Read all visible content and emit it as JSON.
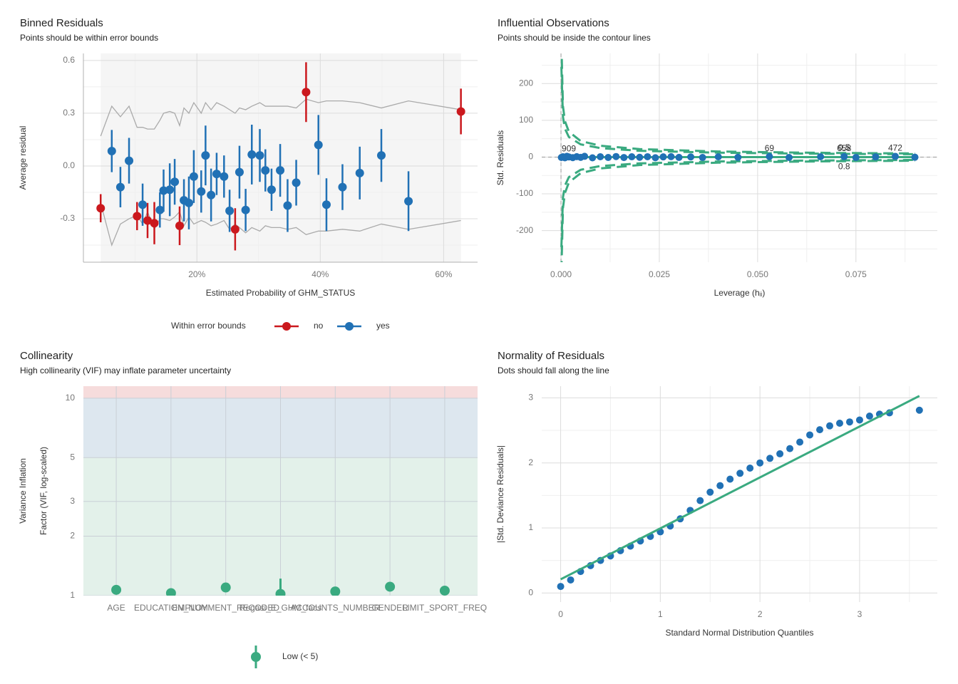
{
  "chart_data": [
    {
      "type": "errorbar",
      "title": "Binned Residuals",
      "subtitle": "Points should be within error bounds",
      "xlabel": "Estimated Probability of GHM_STATUS",
      "ylabel": "Average residual",
      "xlim": [
        0.016,
        0.655
      ],
      "ylim": [
        -0.547,
        0.64
      ],
      "xticks": [
        {
          "value": 0.2,
          "label": "20%"
        },
        {
          "value": 0.4,
          "label": "40%"
        },
        {
          "value": 0.6,
          "label": "60%"
        }
      ],
      "yticks": [
        0.6,
        0.3,
        {
          "value": 0,
          "label": "0.0"
        },
        -0.3
      ],
      "grid": true,
      "axis_lines": true,
      "band_color": "#f5f5f5",
      "legend_title": "Within error bounds",
      "legend": "bottom",
      "series": [
        {
          "name": "no",
          "color": "#cb181d",
          "x": [
            0.044,
            0.103,
            0.12,
            0.131,
            0.172,
            0.262,
            0.377,
            0.628
          ],
          "values": [
            -0.24,
            -0.285,
            -0.31,
            -0.325,
            -0.34,
            -0.36,
            0.42,
            0.31
          ],
          "errors": [
            0.08,
            0.08,
            0.1,
            0.12,
            0.11,
            0.12,
            0.17,
            0.13
          ]
        },
        {
          "name": "yes",
          "color": "#2171b5",
          "x": [
            0.062,
            0.076,
            0.09,
            0.112,
            0.14,
            0.146,
            0.156,
            0.164,
            0.179,
            0.187,
            0.195,
            0.207,
            0.214,
            0.223,
            0.232,
            0.244,
            0.253,
            0.269,
            0.279,
            0.289,
            0.302,
            0.311,
            0.321,
            0.335,
            0.347,
            0.361,
            0.397,
            0.41,
            0.436,
            0.464,
            0.499,
            0.543
          ],
          "values": [
            0.085,
            -0.12,
            0.03,
            -0.22,
            -0.25,
            -0.14,
            -0.135,
            -0.09,
            -0.195,
            -0.21,
            -0.06,
            -0.145,
            0.06,
            -0.165,
            -0.045,
            -0.06,
            -0.255,
            -0.035,
            -0.25,
            0.065,
            0.06,
            -0.025,
            -0.135,
            -0.025,
            -0.225,
            -0.095,
            0.12,
            -0.22,
            -0.12,
            -0.04,
            0.06,
            -0.2
          ],
          "errors": [
            0.12,
            0.115,
            0.13,
            0.12,
            0.1,
            0.12,
            0.15,
            0.13,
            0.12,
            0.15,
            0.15,
            0.12,
            0.17,
            0.15,
            0.12,
            0.12,
            0.12,
            0.15,
            0.12,
            0.17,
            0.15,
            0.12,
            0.12,
            0.15,
            0.15,
            0.13,
            0.17,
            0.15,
            0.13,
            0.15,
            0.15,
            0.17
          ]
        }
      ],
      "bounds": {
        "color": "#aaaaaa",
        "x": [
          0.044,
          0.062,
          0.076,
          0.09,
          0.103,
          0.112,
          0.12,
          0.131,
          0.14,
          0.146,
          0.156,
          0.164,
          0.172,
          0.179,
          0.187,
          0.195,
          0.207,
          0.214,
          0.223,
          0.232,
          0.244,
          0.253,
          0.262,
          0.269,
          0.279,
          0.289,
          0.302,
          0.311,
          0.321,
          0.335,
          0.347,
          0.361,
          0.377,
          0.397,
          0.41,
          0.436,
          0.464,
          0.499,
          0.543,
          0.628
        ],
        "upper": [
          0.17,
          0.34,
          0.28,
          0.34,
          0.22,
          0.22,
          0.21,
          0.21,
          0.26,
          0.3,
          0.31,
          0.3,
          0.23,
          0.33,
          0.3,
          0.36,
          0.3,
          0.36,
          0.32,
          0.36,
          0.34,
          0.32,
          0.3,
          0.33,
          0.32,
          0.34,
          0.36,
          0.34,
          0.34,
          0.34,
          0.34,
          0.33,
          0.38,
          0.36,
          0.37,
          0.37,
          0.36,
          0.33,
          0.37,
          0.32
        ],
        "lower": [
          -0.21,
          -0.45,
          -0.33,
          -0.3,
          -0.28,
          -0.33,
          -0.26,
          -0.36,
          -0.3,
          -0.3,
          -0.31,
          -0.29,
          -0.26,
          -0.34,
          -0.29,
          -0.33,
          -0.31,
          -0.32,
          -0.34,
          -0.33,
          -0.31,
          -0.36,
          -0.33,
          -0.35,
          -0.38,
          -0.35,
          -0.37,
          -0.34,
          -0.35,
          -0.35,
          -0.36,
          -0.35,
          -0.39,
          -0.37,
          -0.37,
          -0.36,
          -0.37,
          -0.33,
          -0.36,
          -0.31
        ]
      }
    },
    {
      "type": "scatter",
      "title": "Influential Observations",
      "subtitle": "Points should be inside the contour lines",
      "xlabel": "Leverage (hᵢᵢ)",
      "ylabel": "Std. Residuals",
      "xlim": [
        -0.0049,
        0.0957
      ],
      "ylim": [
        -286,
        282
      ],
      "xticks": [
        {
          "value": 0,
          "label": "0.000"
        },
        0.025,
        {
          "value": 0.05,
          "label": "0.050"
        },
        0.075
      ],
      "yticks": [
        200,
        100,
        0,
        -100,
        -200
      ],
      "grid": true,
      "color": "#2171b5",
      "hline": 0,
      "vline": 0,
      "x": [
        0.0001,
        0.0005,
        0.001,
        0.0015,
        0.002,
        0.003,
        0.004,
        0.005,
        0.006,
        0.008,
        0.01,
        0.012,
        0.014,
        0.016,
        0.018,
        0.02,
        0.022,
        0.024,
        0.026,
        0.028,
        0.03,
        0.033,
        0.036,
        0.04,
        0.045,
        0.053,
        0.058,
        0.066,
        0.072,
        0.075,
        0.08,
        0.085,
        0.09
      ],
      "values": [
        -1,
        1,
        -2,
        2,
        0.5,
        -1.5,
        1.2,
        -0.8,
        2,
        -2,
        1,
        -1,
        1.5,
        -1.2,
        0.8,
        -0.5,
        1,
        -1.8,
        0.6,
        1.2,
        -0.9,
        0.4,
        -1.1,
        0.7,
        -0.6,
        1.4,
        -1.0,
        0.9,
        1.3,
        -1.1,
        0.6,
        1.8,
        -0.4
      ],
      "point_labels": [
        null,
        null,
        null,
        null,
        "909",
        null,
        null,
        null,
        null,
        null,
        null,
        null,
        null,
        null,
        null,
        null,
        null,
        null,
        null,
        null,
        null,
        null,
        null,
        null,
        null,
        "69",
        null,
        null,
        "658",
        null,
        null,
        "472",
        null
      ],
      "fit": {
        "color": "#3aaa80",
        "x": [
          0,
          0.09
        ],
        "values": [
          0,
          0
        ]
      },
      "contours": [
        {
          "label": "0.5",
          "color": "#3aaa80",
          "x": [
            0.0001,
            0.0005,
            0.001,
            0.002,
            0.005,
            0.01,
            0.02,
            0.04,
            0.06,
            0.072,
            0.09
          ],
          "upper": [
            244.9,
            109.5,
            77.4,
            54.7,
            34.6,
            24.4,
            17.1,
            12.0,
            9.7,
            8.8,
            7.8
          ],
          "lower": [
            -244.9,
            -109.5,
            -77.4,
            -54.7,
            -34.6,
            -24.4,
            -17.1,
            -12.0,
            -9.7,
            -8.8,
            -7.8
          ]
        },
        {
          "label": "0.8",
          "color": "#3aaa80",
          "x": [
            0.0001,
            0.0005,
            0.001,
            0.002,
            0.005,
            0.01,
            0.02,
            0.04,
            0.06,
            0.072,
            0.09
          ],
          "upper": [
            309.8,
            138.5,
            97.9,
            69.2,
            43.7,
            30.8,
            21.7,
            15.2,
            12.3,
            11.1,
            9.9
          ],
          "lower": [
            -309.8,
            -138.5,
            -97.9,
            -69.2,
            -43.7,
            -30.8,
            -21.7,
            -15.2,
            -12.3,
            -11.1,
            -9.9
          ]
        }
      ]
    },
    {
      "type": "errorbar",
      "title": "Collinearity",
      "subtitle": "High collinearity (VIF) may inflate parameter uncertainty",
      "ylabel": [
        "Variance Inflation",
        "Factor (VIF, log-scaled)"
      ],
      "log": true,
      "ylim": [
        1,
        11.5
      ],
      "yticks": [
        1,
        2,
        3,
        5,
        10
      ],
      "grid": true,
      "color": "#3aaa80",
      "categories": [
        "AGE",
        "EDUCATION_NUM",
        "EMPLOYMENT_RECODED",
        "Regasi_E_GHM_facs",
        "ACCOUNTS_NUMBER",
        "GENDER",
        "LIMIT_SPORT_FREQ"
      ],
      "values": [
        1.07,
        1.03,
        1.1,
        1.02,
        1.05,
        1.11,
        1.06
      ],
      "ci_low": [
        1.03,
        1.0,
        1.06,
        1.0,
        1.01,
        1.07,
        1.02
      ],
      "ci_high": [
        1.11,
        1.09,
        1.14,
        1.22,
        1.1,
        1.15,
        1.1
      ],
      "zones": [
        {
          "lim": [
            1,
            5
          ],
          "color": "#e3f1ea"
        },
        {
          "lim": [
            5,
            10
          ],
          "color": "#dde7ef"
        },
        {
          "lim": [
            10,
            11.5
          ],
          "color": "#f6dcdc"
        }
      ],
      "legend_label": "Low (< 5)"
    },
    {
      "type": "scatter",
      "title": "Normality of Residuals",
      "subtitle": "Dots should fall along the line",
      "xlabel": "Standard Normal Distribution Quantiles",
      "ylabel": "|Std. Deviance Residuals|",
      "xlim": [
        -0.19,
        3.78
      ],
      "ylim": [
        -0.14,
        3.18
      ],
      "xticks": [
        0,
        1,
        2,
        3
      ],
      "yticks": [
        0,
        1,
        2,
        3
      ],
      "grid": true,
      "color": "#2171b5",
      "x": [
        0,
        0.1,
        0.2,
        0.3,
        0.4,
        0.5,
        0.6,
        0.7,
        0.8,
        0.9,
        1.0,
        1.1,
        1.2,
        1.3,
        1.4,
        1.5,
        1.6,
        1.7,
        1.8,
        1.9,
        2.0,
        2.1,
        2.2,
        2.3,
        2.4,
        2.5,
        2.6,
        2.7,
        2.8,
        2.9,
        3.0,
        3.1,
        3.2,
        3.3,
        3.6
      ],
      "values": [
        0.1,
        0.2,
        0.33,
        0.42,
        0.5,
        0.57,
        0.65,
        0.72,
        0.8,
        0.87,
        0.94,
        1.03,
        1.14,
        1.27,
        1.42,
        1.55,
        1.65,
        1.75,
        1.84,
        1.92,
        2.0,
        2.07,
        2.14,
        2.22,
        2.32,
        2.43,
        2.51,
        2.57,
        2.61,
        2.63,
        2.66,
        2.72,
        2.75,
        2.77,
        2.81
      ],
      "fit": {
        "color": "#3aaa80",
        "x": [
          0,
          3.6
        ],
        "values": [
          0.21,
          3.03
        ]
      }
    }
  ]
}
